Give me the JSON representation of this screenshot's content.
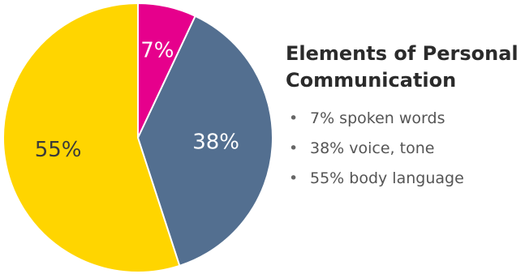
{
  "chart_data": {
    "type": "pie",
    "title": "Elements of Personal Communication",
    "slices": [
      {
        "value": 7,
        "label": "7%",
        "color": "#E6008C",
        "label_color": "#ffffff"
      },
      {
        "value": 38,
        "label": "38%",
        "color": "#536F90",
        "label_color": "#ffffff"
      },
      {
        "value": 55,
        "label": "55%",
        "color": "#FFD500",
        "label_color": "#3a3a3a"
      }
    ],
    "start_angle_deg": 0,
    "direction": "clockwise",
    "legend": {
      "placement": "right",
      "items": [
        "7% spoken words",
        "38% voice, tone",
        "55% body language"
      ]
    }
  }
}
